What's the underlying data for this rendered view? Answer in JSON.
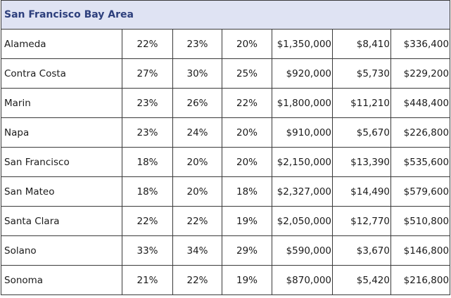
{
  "table": {
    "header": "San Francisco Bay Area",
    "rows": [
      {
        "county": "Alameda",
        "c1": "22%",
        "c2": "23%",
        "c3": "20%",
        "c4": "$1,350,000",
        "c5": "$8,410",
        "c6": "$336,400"
      },
      {
        "county": "Contra Costa",
        "c1": "27%",
        "c2": "30%",
        "c3": "25%",
        "c4": "$920,000",
        "c5": "$5,730",
        "c6": "$229,200"
      },
      {
        "county": "Marin",
        "c1": "23%",
        "c2": "26%",
        "c3": "22%",
        "c4": "$1,800,000",
        "c5": "$11,210",
        "c6": "$448,400"
      },
      {
        "county": "Napa",
        "c1": "23%",
        "c2": "24%",
        "c3": "20%",
        "c4": "$910,000",
        "c5": "$5,670",
        "c6": "$226,800"
      },
      {
        "county": "San Francisco",
        "c1": "18%",
        "c2": "20%",
        "c3": "20%",
        "c4": "$2,150,000",
        "c5": "$13,390",
        "c6": "$535,600"
      },
      {
        "county": "San Mateo",
        "c1": "18%",
        "c2": "20%",
        "c3": "18%",
        "c4": "$2,327,000",
        "c5": "$14,490",
        "c6": "$579,600"
      },
      {
        "county": "Santa Clara",
        "c1": "22%",
        "c2": "22%",
        "c3": "19%",
        "c4": "$2,050,000",
        "c5": "$12,770",
        "c6": "$510,800"
      },
      {
        "county": "Solano",
        "c1": "33%",
        "c2": "34%",
        "c3": "29%",
        "c4": "$590,000",
        "c5": "$3,670",
        "c6": "$146,800"
      },
      {
        "county": "Sonoma",
        "c1": "21%",
        "c2": "22%",
        "c3": "19%",
        "c4": "$870,000",
        "c5": "$5,420",
        "c6": "$216,800"
      }
    ]
  }
}
